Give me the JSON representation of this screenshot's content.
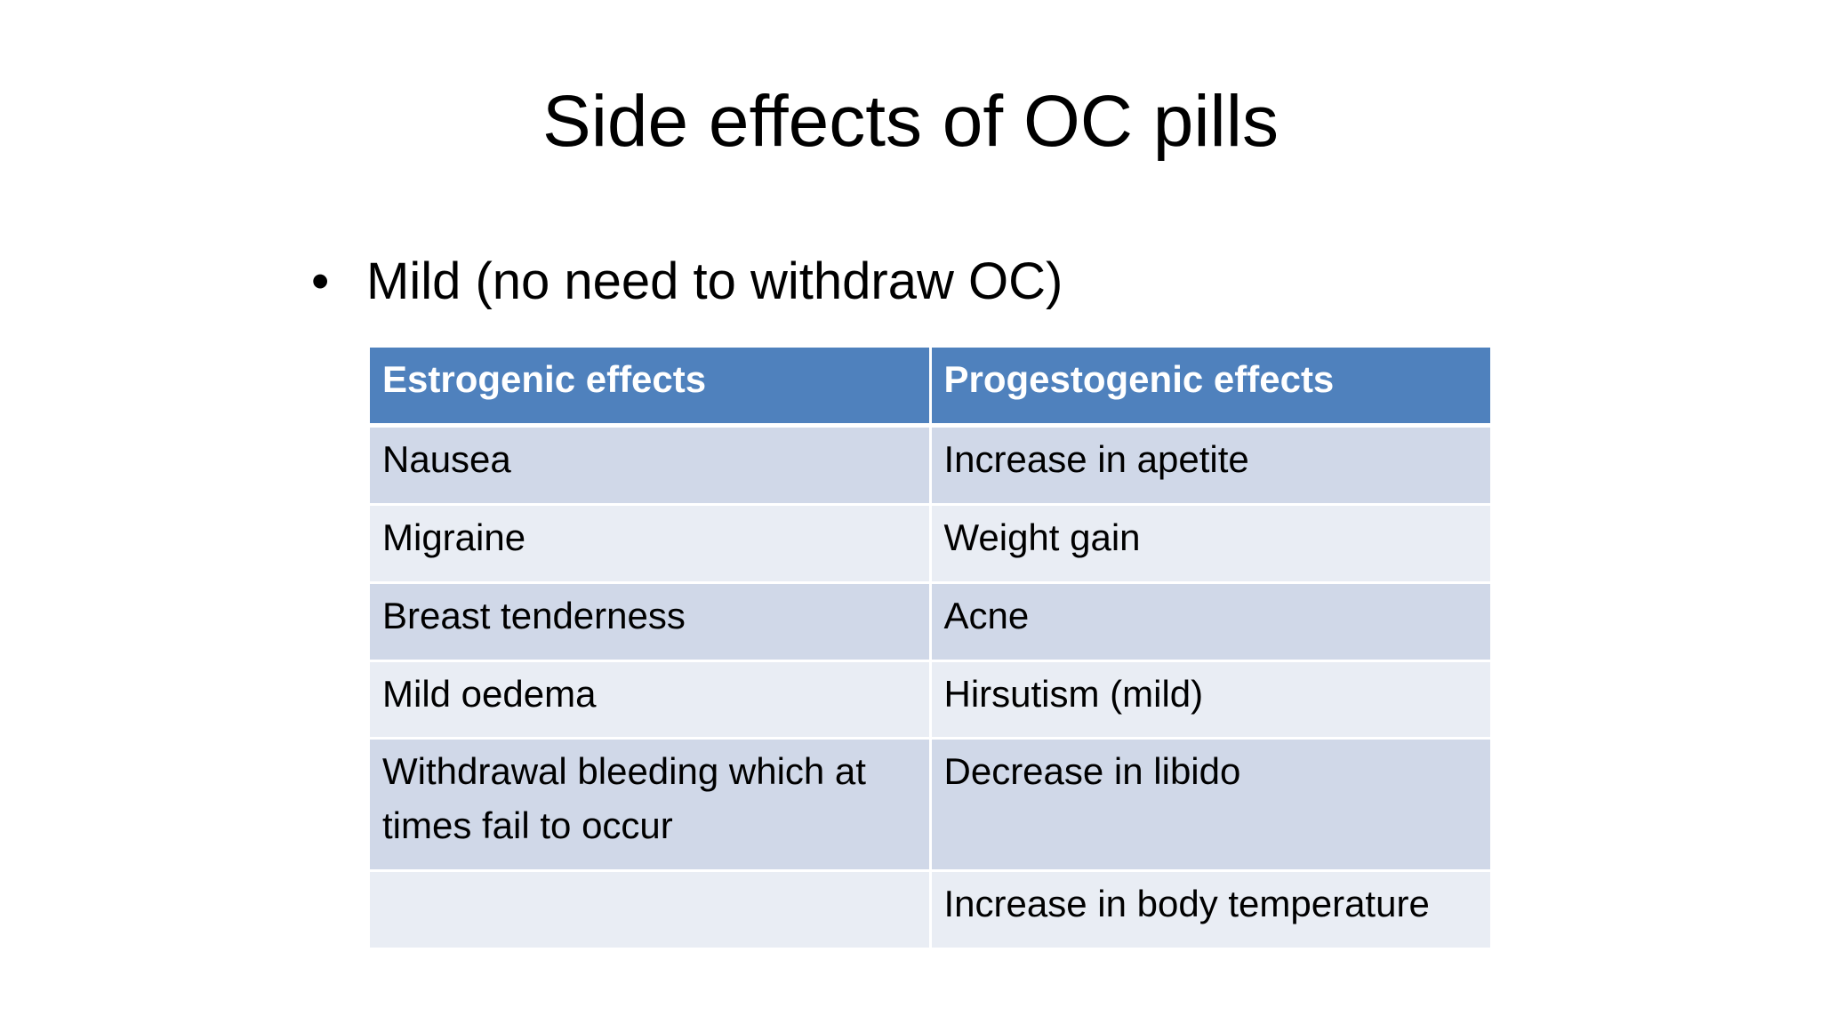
{
  "title": "Side effects of OC pills",
  "bullet": "Mild (no need to withdraw OC)",
  "table": {
    "header": [
      "Estrogenic effects",
      "Progestogenic effects"
    ],
    "rows": [
      [
        "Nausea",
        "Increase in apetite"
      ],
      [
        "Migraine",
        "Weight gain"
      ],
      [
        "Breast tenderness",
        "Acne"
      ],
      [
        "Mild oedema",
        "Hirsutism (mild)"
      ],
      [
        "Withdrawal bleeding which at times fail to occur",
        "Decrease in libido"
      ],
      [
        null,
        "Increase in body temperature"
      ]
    ]
  }
}
